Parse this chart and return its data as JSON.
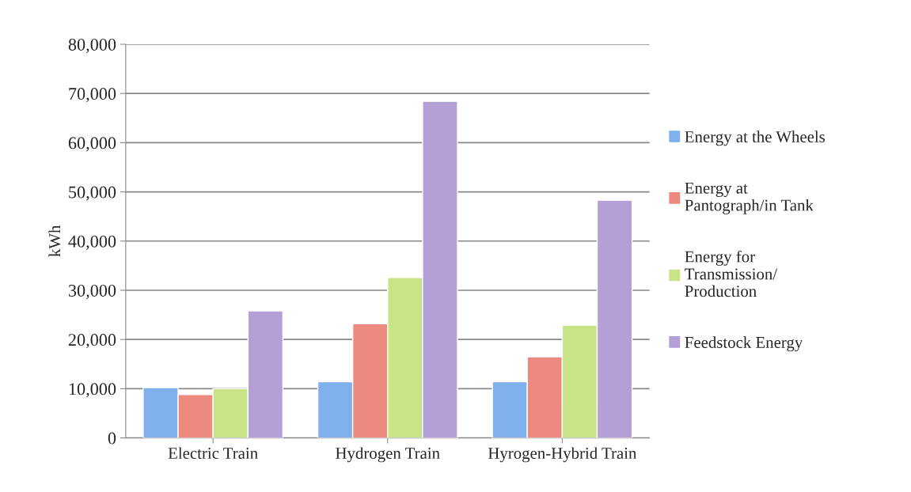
{
  "chart_data": {
    "type": "bar",
    "ylabel": "kWh",
    "categories": [
      "Electric Train",
      "Hydrogen Train",
      "Hyrogen-Hybrid Train"
    ],
    "series": [
      {
        "name": "Energy at the Wheels",
        "color": "#7fb0ec",
        "values": [
          10200,
          11400,
          11400
        ]
      },
      {
        "name": "Energy at Pantograph/in Tank",
        "color": "#ec8a80",
        "values": [
          8800,
          23200,
          16500
        ]
      },
      {
        "name": "Energy for Transmission/ Production",
        "color": "#c8e487",
        "values": [
          10000,
          32600,
          22900
        ]
      },
      {
        "name": "Feedstock Energy",
        "color": "#b49fd6",
        "values": [
          25800,
          68400,
          48300
        ]
      }
    ],
    "ylim": [
      0,
      80000
    ],
    "yticks": [
      {
        "value": 0,
        "label": "0"
      },
      {
        "value": 10000,
        "label": "10,000"
      },
      {
        "value": 20000,
        "label": "20,000"
      },
      {
        "value": 30000,
        "label": "30,000"
      },
      {
        "value": 40000,
        "label": "40,000"
      },
      {
        "value": 50000,
        "label": "50,000"
      },
      {
        "value": 60000,
        "label": "60,000"
      },
      {
        "value": 70000,
        "label": "70,000"
      },
      {
        "value": 80000,
        "label": "80,000"
      }
    ],
    "grid": "y",
    "legend": "right"
  }
}
